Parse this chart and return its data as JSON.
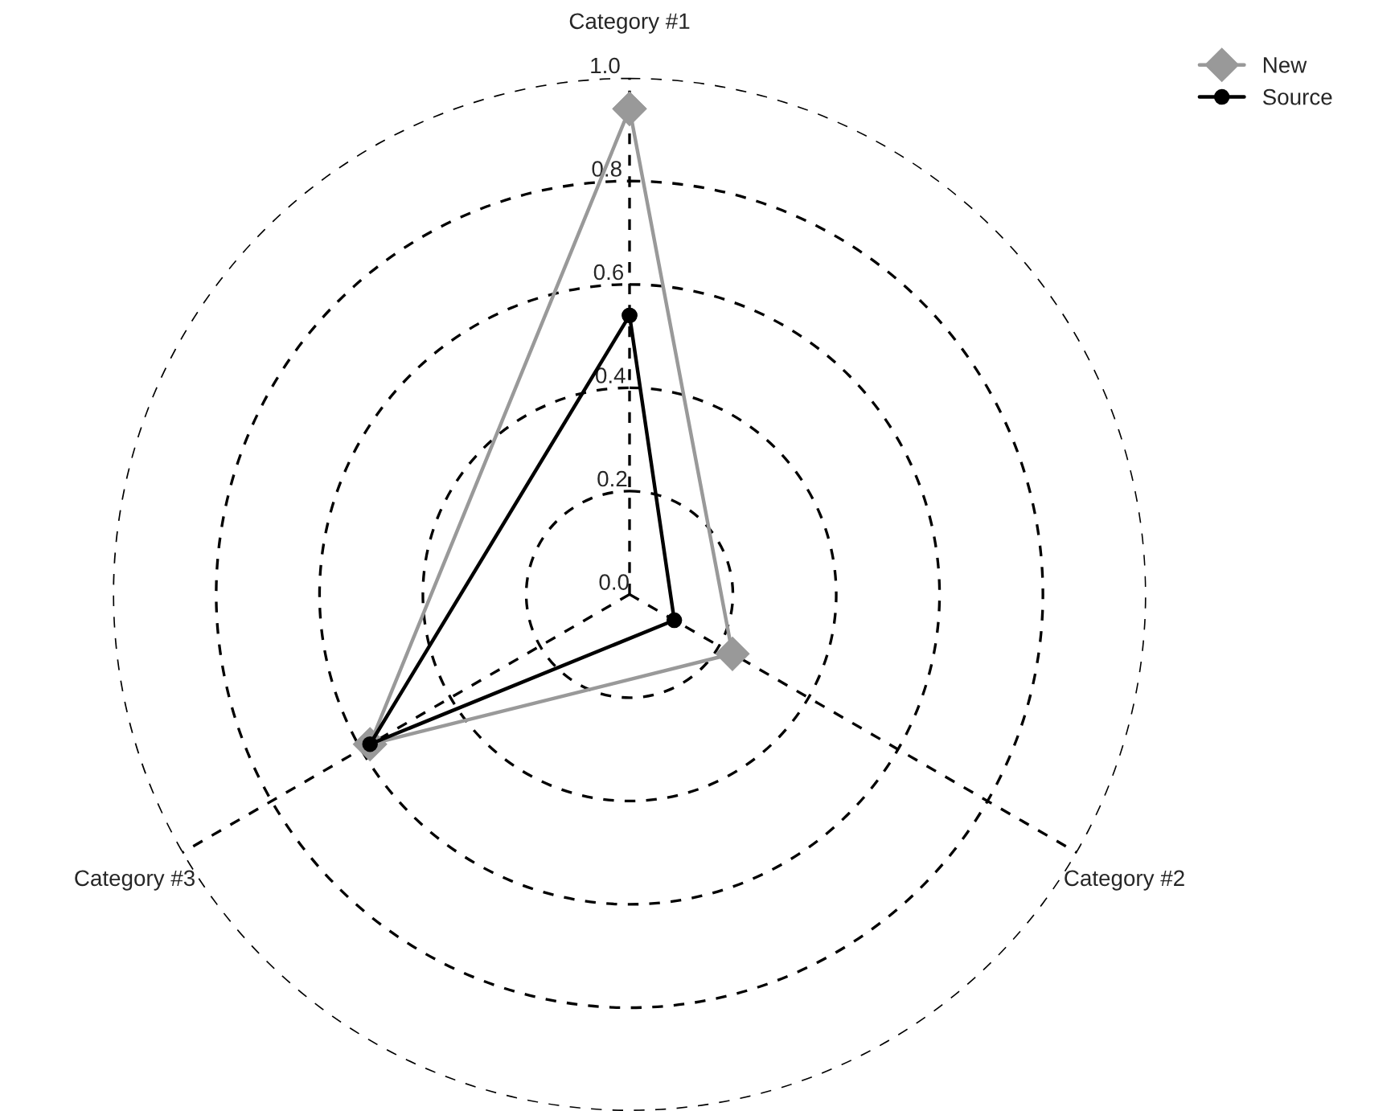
{
  "chart_data": {
    "type": "radar",
    "categories": [
      "Category #1",
      "Category #2",
      "Category #3"
    ],
    "series": [
      {
        "name": "New",
        "color": "#999999",
        "marker": "diamond",
        "values": [
          0.94,
          0.23,
          0.58
        ]
      },
      {
        "name": "Source",
        "color": "#000000",
        "marker": "circle",
        "values": [
          0.54,
          0.1,
          0.58
        ]
      }
    ],
    "ylim": [
      0,
      1.0
    ],
    "yticks": [
      {
        "value": 0,
        "label": "0.0"
      },
      {
        "value": 0.2,
        "label": "0.2"
      },
      {
        "value": 0.4,
        "label": "0.4"
      },
      {
        "value": 0.6,
        "label": "0.6"
      },
      {
        "value": 0.8,
        "label": "0.8"
      },
      {
        "value": 1.0,
        "label": "1.0"
      }
    ],
    "grid": true,
    "legend": "top right"
  }
}
